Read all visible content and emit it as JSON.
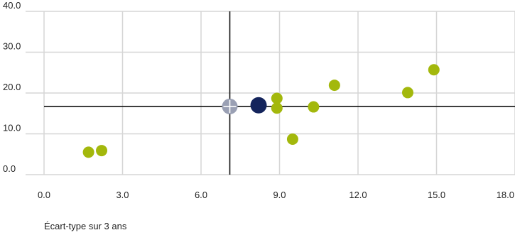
{
  "chart_data": {
    "type": "scatter",
    "title": "",
    "xlabel": "Écart-type sur 3 ans",
    "ylabel": "",
    "xlim": [
      0,
      18
    ],
    "ylim": [
      0,
      40
    ],
    "x_ticks": [
      "0.0",
      "3.0",
      "6.0",
      "9.0",
      "12.0",
      "15.0",
      "18.0"
    ],
    "y_ticks": [
      "0.0",
      "10.0",
      "20.0",
      "30.0",
      "40.0"
    ],
    "grid": true,
    "crosshair": {
      "x": 7.1,
      "y": 16.7
    },
    "series": [
      {
        "color": "#a3b80c",
        "points": [
          {
            "x": 1.7,
            "y": 5.5
          },
          {
            "x": 2.2,
            "y": 5.9
          },
          {
            "x": 8.9,
            "y": 18.7
          },
          {
            "x": 8.9,
            "y": 16.3
          },
          {
            "x": 9.5,
            "y": 8.7
          },
          {
            "x": 10.3,
            "y": 16.6
          },
          {
            "x": 11.1,
            "y": 21.9
          },
          {
            "x": 13.9,
            "y": 20.1
          },
          {
            "x": 14.9,
            "y": 25.7
          }
        ]
      },
      {
        "color": "#9aa0b4",
        "points": [
          {
            "x": 7.1,
            "y": 16.7
          }
        ]
      },
      {
        "color": "#14245c",
        "points": [
          {
            "x": 8.2,
            "y": 17.0
          }
        ]
      }
    ]
  }
}
